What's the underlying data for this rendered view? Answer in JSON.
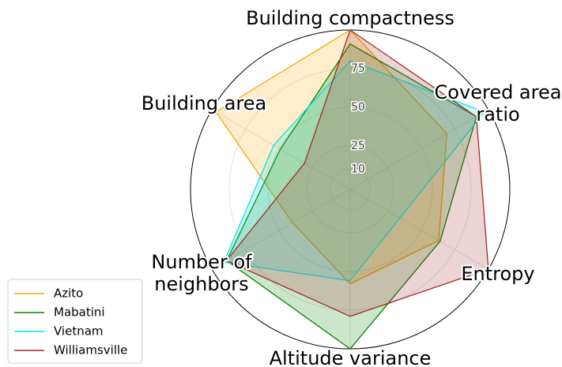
{
  "chart_data": {
    "type": "radar",
    "categories": [
      "Building compactness",
      "Covered area\nratio",
      "Entropy",
      "Altitude variance",
      "Number of\nneighbors",
      "Building area"
    ],
    "series": [
      {
        "name": "Azito",
        "color": "#ffa500",
        "values": [
          100,
          69,
          63,
          58,
          40,
          97
        ]
      },
      {
        "name": "Mabatini",
        "color": "#008000",
        "values": [
          91,
          91,
          64,
          100,
          89,
          49
        ]
      },
      {
        "name": "Vietnam",
        "color": "#00e5e5",
        "values": [
          80,
          97,
          34,
          56,
          91,
          54
        ]
      },
      {
        "name": "Williamsville",
        "color": "#a52a2a",
        "values": [
          100,
          91,
          100,
          79,
          89,
          31
        ]
      }
    ],
    "ylim": [
      -3,
      100
    ],
    "yticks": [
      10,
      25,
      50,
      75
    ],
    "legend": "lower left"
  }
}
